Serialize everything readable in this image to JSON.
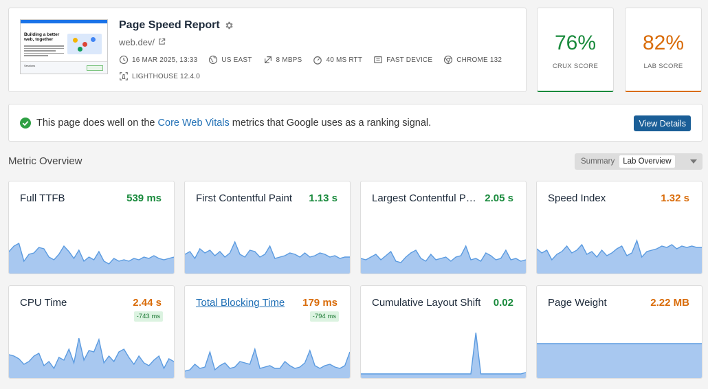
{
  "header": {
    "thumbnail": {
      "headline": "Building a better web, together",
      "footer_text": "Sessions"
    },
    "title": "Page Speed Report",
    "url": "web.dev/",
    "meta": [
      {
        "icon": "clock-icon",
        "label": "16 MAR 2025, 13:33"
      },
      {
        "icon": "globe-icon",
        "label": "US EAST"
      },
      {
        "icon": "bandwidth-icon",
        "label": "8 MBPS"
      },
      {
        "icon": "latency-icon",
        "label": "40 MS RTT"
      },
      {
        "icon": "device-icon",
        "label": "FAST DEVICE"
      },
      {
        "icon": "chrome-icon",
        "label": "CHROME 132"
      },
      {
        "icon": "lighthouse-icon",
        "label": "LIGHTHOUSE 12.4.0"
      }
    ]
  },
  "scores": {
    "crux": {
      "value": "76%",
      "label": "CRUX SCORE",
      "color": "#198a3c"
    },
    "lab": {
      "value": "82%",
      "label": "LAB SCORE",
      "color": "#d96c0a"
    }
  },
  "banner": {
    "text_before": "This page does well on the ",
    "link": "Core Web Vitals",
    "text_after": " metrics that Google uses as a ranking signal.",
    "button": "View Details"
  },
  "overview": {
    "title": "Metric Overview",
    "toggle": {
      "summary": "Summary",
      "lab": "Lab Overview"
    }
  },
  "metrics": [
    {
      "name": "Full TTFB",
      "value": "539 ms",
      "status": "good",
      "delta": ""
    },
    {
      "name": "First Contentful Paint",
      "value": "1.13 s",
      "status": "good",
      "delta": ""
    },
    {
      "name": "Largest Contentful Paint",
      "value": "2.05 s",
      "status": "good",
      "delta": ""
    },
    {
      "name": "Speed Index",
      "value": "1.32 s",
      "status": "warn",
      "delta": ""
    },
    {
      "name": "CPU Time",
      "value": "2.44 s",
      "status": "warn",
      "delta": "-743 ms"
    },
    {
      "name": "Total Blocking Time",
      "value": "179 ms",
      "status": "warn",
      "delta": "-794 ms"
    },
    {
      "name": "Cumulative Layout Shift",
      "value": "0.02",
      "status": "good",
      "delta": ""
    },
    {
      "name": "Page Weight",
      "value": "2.22 MB",
      "status": "warn",
      "delta": ""
    }
  ],
  "colors": {
    "good": "#198a3c",
    "warn": "#d96c0a",
    "spark_fill": "#a8c8f0",
    "spark_line": "#5b9be0",
    "accent": "#1a5e97"
  }
}
